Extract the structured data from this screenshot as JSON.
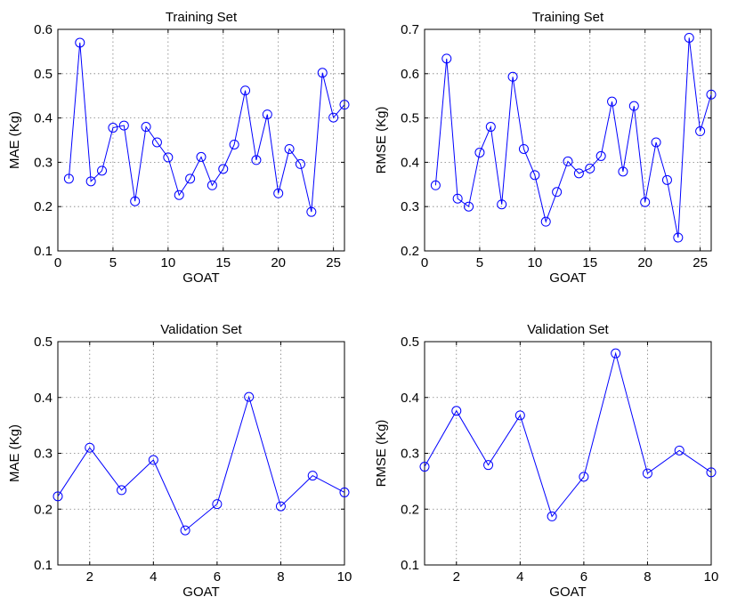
{
  "chart_data": [
    {
      "type": "line",
      "title": "Training Set",
      "xlabel": "GOAT",
      "ylabel": "MAE (Kg)",
      "xlim": [
        0,
        26
      ],
      "ylim": [
        0.1,
        0.6
      ],
      "xticks": [
        0,
        5,
        10,
        15,
        20,
        25
      ],
      "yticks": [
        0.1,
        0.2,
        0.3,
        0.4,
        0.5,
        0.6
      ],
      "grid": true,
      "color": "#0000ff",
      "marker": "circle",
      "series": [
        {
          "x": [
            1,
            2,
            3,
            4,
            5,
            6,
            7,
            8,
            9,
            10,
            11,
            12,
            13,
            14,
            15,
            16,
            17,
            18,
            19,
            20,
            21,
            22,
            23,
            24,
            25,
            26
          ],
          "values": [
            0.263,
            0.57,
            0.257,
            0.281,
            0.378,
            0.383,
            0.212,
            0.38,
            0.345,
            0.311,
            0.226,
            0.263,
            0.312,
            0.248,
            0.285,
            0.34,
            0.462,
            0.305,
            0.408,
            0.23,
            0.33,
            0.296,
            0.188,
            0.502,
            0.401,
            0.43
          ]
        }
      ]
    },
    {
      "type": "line",
      "title": "Training Set",
      "xlabel": "GOAT",
      "ylabel": "RMSE (Kg)",
      "xlim": [
        0,
        26
      ],
      "ylim": [
        0.2,
        0.7
      ],
      "xticks": [
        0,
        5,
        10,
        15,
        20,
        25
      ],
      "yticks": [
        0.2,
        0.3,
        0.4,
        0.5,
        0.6,
        0.7
      ],
      "grid": true,
      "color": "#0000ff",
      "marker": "circle",
      "series": [
        {
          "x": [
            1,
            2,
            3,
            4,
            5,
            6,
            7,
            8,
            9,
            10,
            11,
            12,
            13,
            14,
            15,
            16,
            17,
            18,
            19,
            20,
            21,
            22,
            23,
            24,
            25,
            26
          ],
          "values": [
            0.348,
            0.634,
            0.318,
            0.3,
            0.422,
            0.48,
            0.305,
            0.593,
            0.43,
            0.371,
            0.266,
            0.333,
            0.402,
            0.375,
            0.386,
            0.414,
            0.537,
            0.379,
            0.527,
            0.31,
            0.445,
            0.36,
            0.23,
            0.681,
            0.47,
            0.553
          ]
        }
      ]
    },
    {
      "type": "line",
      "title": "Validation Set",
      "xlabel": "GOAT",
      "ylabel": "MAE (Kg)",
      "xlim": [
        1,
        10
      ],
      "ylim": [
        0.1,
        0.5
      ],
      "xticks": [
        2,
        4,
        6,
        8,
        10
      ],
      "yticks": [
        0.1,
        0.2,
        0.3,
        0.4,
        0.5
      ],
      "grid": true,
      "color": "#0000ff",
      "marker": "circle",
      "series": [
        {
          "x": [
            1,
            2,
            3,
            4,
            5,
            6,
            7,
            8,
            9,
            10
          ],
          "values": [
            0.223,
            0.31,
            0.234,
            0.288,
            0.162,
            0.209,
            0.401,
            0.205,
            0.26,
            0.23
          ]
        }
      ]
    },
    {
      "type": "line",
      "title": "Validation Set",
      "xlabel": "GOAT",
      "ylabel": "RMSE (Kg)",
      "xlim": [
        1,
        10
      ],
      "ylim": [
        0.1,
        0.5
      ],
      "xticks": [
        2,
        4,
        6,
        8,
        10
      ],
      "yticks": [
        0.1,
        0.2,
        0.3,
        0.4,
        0.5
      ],
      "grid": true,
      "color": "#0000ff",
      "marker": "circle",
      "series": [
        {
          "x": [
            1,
            2,
            3,
            4,
            5,
            6,
            7,
            8,
            9,
            10
          ],
          "values": [
            0.276,
            0.376,
            0.279,
            0.368,
            0.187,
            0.258,
            0.479,
            0.264,
            0.305,
            0.266
          ]
        }
      ]
    }
  ]
}
